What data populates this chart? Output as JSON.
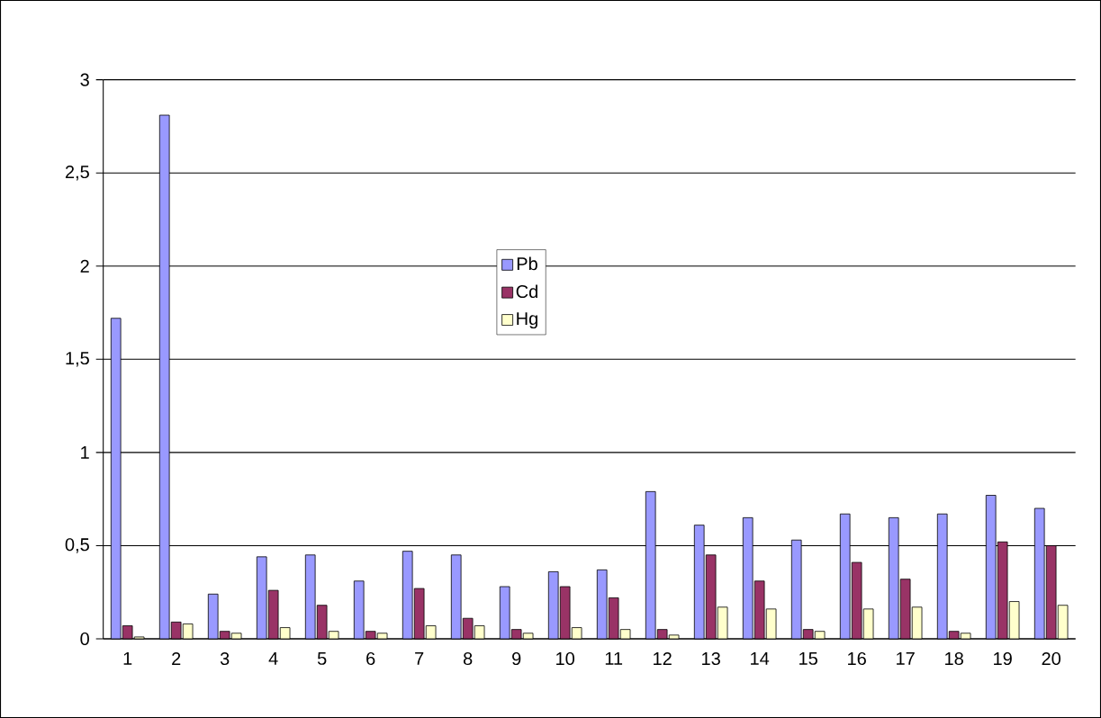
{
  "chart_data": {
    "type": "bar",
    "categories": [
      "1",
      "2",
      "3",
      "4",
      "5",
      "6",
      "7",
      "8",
      "9",
      "10",
      "11",
      "12",
      "13",
      "14",
      "15",
      "16",
      "17",
      "18",
      "19",
      "20"
    ],
    "series": [
      {
        "name": "Pb",
        "color": "#9999ff",
        "values": [
          1.72,
          2.81,
          0.24,
          0.44,
          0.45,
          0.31,
          0.47,
          0.45,
          0.28,
          0.36,
          0.37,
          0.79,
          0.61,
          0.65,
          0.53,
          0.67,
          0.65,
          0.67,
          0.77,
          0.7
        ]
      },
      {
        "name": "Cd",
        "color": "#993366",
        "values": [
          0.07,
          0.09,
          0.04,
          0.26,
          0.18,
          0.04,
          0.27,
          0.11,
          0.05,
          0.28,
          0.22,
          0.05,
          0.45,
          0.31,
          0.05,
          0.41,
          0.32,
          0.04,
          0.52,
          0.5
        ]
      },
      {
        "name": "Hg",
        "color": "#ffffcc",
        "values": [
          0.01,
          0.08,
          0.03,
          0.06,
          0.04,
          0.03,
          0.07,
          0.07,
          0.03,
          0.06,
          0.05,
          0.02,
          0.17,
          0.16,
          0.04,
          0.16,
          0.17,
          0.03,
          0.2,
          0.18
        ]
      }
    ],
    "ylim": [
      0,
      3
    ],
    "yticks": [
      0,
      {
        "value": 0.5,
        "label": "0,5"
      },
      1,
      {
        "value": 1.5,
        "label": "1,5"
      },
      2,
      {
        "value": 2.5,
        "label": "2,5"
      },
      3
    ],
    "grid": "y",
    "legend": "center"
  }
}
